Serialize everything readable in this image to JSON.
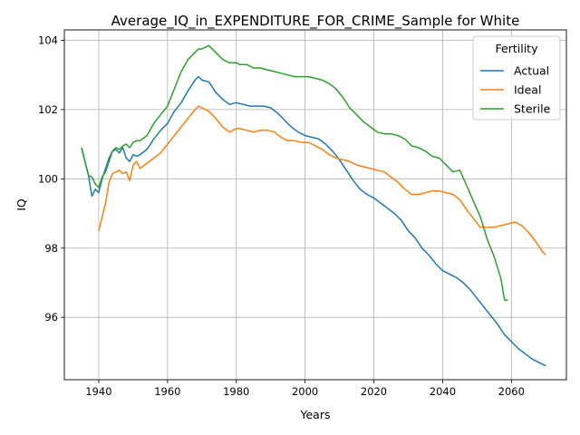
{
  "chart_data": {
    "type": "line",
    "title": "Average_IQ_in_EXPENDITURE_FOR_CRIME_Sample for White",
    "xlabel": "Years",
    "ylabel": "IQ",
    "xlim": [
      1930,
      2076
    ],
    "ylim": [
      94.2,
      104.3
    ],
    "xticks": [
      1940,
      1960,
      1980,
      2000,
      2020,
      2040,
      2060
    ],
    "yticks": [
      96,
      98,
      100,
      102,
      104
    ],
    "grid": true,
    "legend": {
      "title": "Fertility",
      "placement": "top-right"
    },
    "series": [
      {
        "name": "Actual",
        "color": "#1f77b4",
        "x": [
          1935,
          1937,
          1938,
          1939,
          1940,
          1941,
          1942,
          1943,
          1944,
          1945,
          1946,
          1947,
          1948,
          1949,
          1950,
          1951,
          1952,
          1954,
          1956,
          1958,
          1960,
          1962,
          1964,
          1966,
          1968,
          1969,
          1970,
          1972,
          1974,
          1976,
          1978,
          1980,
          1982,
          1984,
          1986,
          1988,
          1990,
          1992,
          1994,
          1996,
          1998,
          2000,
          2002,
          2004,
          2006,
          2008,
          2010,
          2012,
          2014,
          2016,
          2018,
          2020,
          2022,
          2024,
          2026,
          2028,
          2030,
          2032,
          2034,
          2036,
          2038,
          2040,
          2042,
          2044,
          2046,
          2048,
          2050,
          2052,
          2054,
          2056,
          2058,
          2060,
          2062,
          2064,
          2066,
          2068,
          2070
        ],
        "values": [
          100.9,
          100.1,
          99.5,
          99.7,
          99.6,
          100.0,
          100.3,
          100.6,
          100.8,
          100.85,
          100.75,
          100.9,
          100.6,
          100.5,
          100.7,
          100.65,
          100.7,
          100.85,
          101.15,
          101.4,
          101.6,
          101.95,
          102.2,
          102.55,
          102.85,
          102.95,
          102.85,
          102.8,
          102.5,
          102.3,
          102.15,
          102.2,
          102.15,
          102.1,
          102.1,
          102.1,
          102.05,
          101.9,
          101.7,
          101.5,
          101.35,
          101.25,
          101.2,
          101.15,
          101.0,
          100.8,
          100.55,
          100.25,
          99.95,
          99.7,
          99.55,
          99.45,
          99.3,
          99.15,
          99.0,
          98.8,
          98.5,
          98.3,
          98.0,
          97.8,
          97.55,
          97.35,
          97.25,
          97.15,
          97.0,
          96.8,
          96.55,
          96.3,
          96.05,
          95.8,
          95.5,
          95.3,
          95.1,
          94.95,
          94.8,
          94.7,
          94.6
        ]
      },
      {
        "name": "Ideal",
        "color": "#ff7f0e",
        "x": [
          1940,
          1941,
          1942,
          1943,
          1944,
          1945,
          1946,
          1947,
          1948,
          1949,
          1950,
          1951,
          1952,
          1954,
          1956,
          1958,
          1960,
          1962,
          1964,
          1966,
          1968,
          1969,
          1970,
          1972,
          1974,
          1976,
          1978,
          1980,
          1981,
          1983,
          1985,
          1987,
          1989,
          1991,
          1993,
          1995,
          1997,
          1999,
          2001,
          2003,
          2005,
          2007,
          2009,
          2011,
          2013,
          2015,
          2017,
          2019,
          2021,
          2023,
          2025,
          2027,
          2029,
          2031,
          2033,
          2035,
          2037,
          2039,
          2041,
          2043,
          2045,
          2047,
          2049,
          2051,
          2053,
          2055,
          2057,
          2059,
          2061,
          2063,
          2065,
          2067,
          2069,
          2070
        ],
        "values": [
          98.5,
          98.9,
          99.3,
          99.9,
          100.15,
          100.2,
          100.25,
          100.15,
          100.2,
          99.95,
          100.4,
          100.5,
          100.3,
          100.45,
          100.6,
          100.75,
          101.0,
          101.25,
          101.5,
          101.75,
          102.0,
          102.1,
          102.05,
          101.95,
          101.75,
          101.5,
          101.35,
          101.45,
          101.45,
          101.4,
          101.35,
          101.4,
          101.4,
          101.35,
          101.2,
          101.1,
          101.1,
          101.05,
          101.05,
          100.95,
          100.85,
          100.7,
          100.6,
          100.55,
          100.5,
          100.4,
          100.35,
          100.3,
          100.25,
          100.2,
          100.05,
          99.9,
          99.7,
          99.55,
          99.55,
          99.6,
          99.65,
          99.65,
          99.6,
          99.55,
          99.4,
          99.1,
          98.85,
          98.6,
          98.6,
          98.6,
          98.65,
          98.7,
          98.75,
          98.65,
          98.45,
          98.2,
          97.9,
          97.8
        ]
      },
      {
        "name": "Sterile",
        "color": "#2ca02c",
        "x": [
          1935,
          1937,
          1938,
          1939,
          1940,
          1941,
          1942,
          1943,
          1944,
          1945,
          1946,
          1947,
          1948,
          1949,
          1950,
          1951,
          1952,
          1954,
          1956,
          1958,
          1960,
          1962,
          1964,
          1966,
          1968,
          1969,
          1970,
          1972,
          1974,
          1976,
          1978,
          1980,
          1981,
          1983,
          1985,
          1987,
          1989,
          1991,
          1993,
          1995,
          1997,
          1999,
          2001,
          2003,
          2005,
          2007,
          2009,
          2011,
          2013,
          2015,
          2017,
          2019,
          2021,
          2023,
          2025,
          2027,
          2029,
          2031,
          2033,
          2035,
          2037,
          2039,
          2041,
          2043,
          2045,
          2047,
          2049,
          2051,
          2053,
          2055,
          2057,
          2058,
          2059
        ],
        "values": [
          100.9,
          100.1,
          100.05,
          99.85,
          99.75,
          100.05,
          100.2,
          100.5,
          100.8,
          100.9,
          100.85,
          100.95,
          101.0,
          100.9,
          101.05,
          101.1,
          101.1,
          101.25,
          101.6,
          101.85,
          102.1,
          102.6,
          103.1,
          103.45,
          103.65,
          103.75,
          103.75,
          103.85,
          103.65,
          103.45,
          103.35,
          103.35,
          103.3,
          103.3,
          103.2,
          103.2,
          103.15,
          103.1,
          103.05,
          103.0,
          102.95,
          102.95,
          102.95,
          102.9,
          102.85,
          102.75,
          102.6,
          102.35,
          102.05,
          101.85,
          101.65,
          101.5,
          101.35,
          101.3,
          101.3,
          101.25,
          101.15,
          100.95,
          100.9,
          100.8,
          100.65,
          100.6,
          100.4,
          100.2,
          100.25,
          99.8,
          99.35,
          98.9,
          98.25,
          97.75,
          97.1,
          96.5,
          96.5
        ]
      }
    ]
  }
}
